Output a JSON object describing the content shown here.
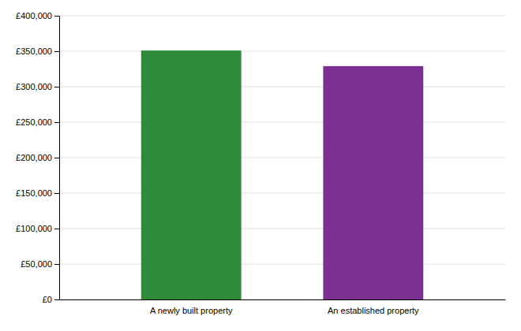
{
  "chart_data": {
    "type": "bar",
    "categories": [
      "A newly built property",
      "An established property"
    ],
    "values": [
      351000,
      329000
    ],
    "colors": [
      "#2e8b3a",
      "#7b3092"
    ],
    "ylim": [
      0,
      400000
    ],
    "yticks": [
      {
        "value": 0,
        "label": "£0"
      },
      {
        "value": 50000,
        "label": "£50,000"
      },
      {
        "value": 100000,
        "label": "£100,000"
      },
      {
        "value": 150000,
        "label": "£150,000"
      },
      {
        "value": 200000,
        "label": "£200,000"
      },
      {
        "value": 250000,
        "label": "£250,000"
      },
      {
        "value": 300000,
        "label": "£300,000"
      },
      {
        "value": 350000,
        "label": "£350,000"
      },
      {
        "value": 400000,
        "label": "£400,000"
      }
    ],
    "grid": true
  }
}
